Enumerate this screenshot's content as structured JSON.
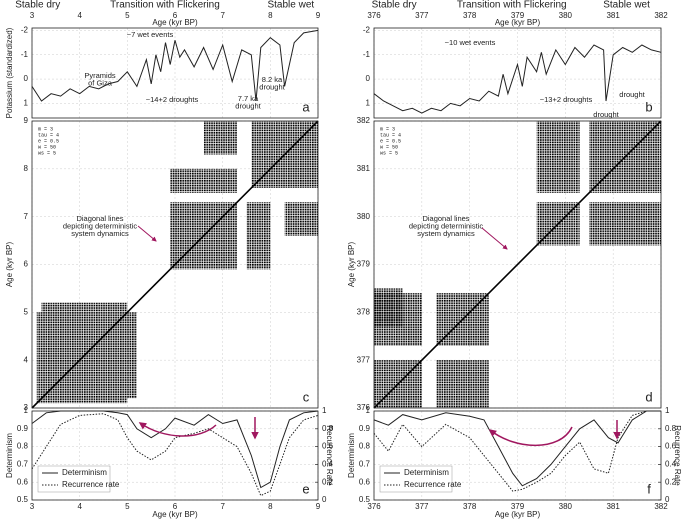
{
  "chart_data": [
    {
      "type": "line",
      "panel_label": "a",
      "header_labels": [
        {
          "text": "Stable dry",
          "color": "#d0312d"
        },
        {
          "text": "Transition with Flickering",
          "color": "#a0175f"
        },
        {
          "text": "Stable wet",
          "color": "#2f7fc1"
        }
      ],
      "x_label": "Age (kyr BP)",
      "y_label": "Potassium (standardized)",
      "xlim": [
        3,
        9
      ],
      "xticks": [
        3,
        4,
        5,
        6,
        7,
        8,
        9
      ],
      "ylim": [
        1.6,
        -2.1
      ],
      "yticks": [
        -2,
        -1,
        0,
        1
      ],
      "grid": true,
      "x": [
        3,
        3.2,
        3.4,
        3.6,
        3.8,
        4.0,
        4.2,
        4.4,
        4.6,
        4.8,
        5.0,
        5.2,
        5.4,
        5.5,
        5.6,
        5.7,
        5.8,
        5.9,
        6.0,
        6.1,
        6.2,
        6.4,
        6.6,
        6.8,
        7.0,
        7.2,
        7.4,
        7.6,
        7.7,
        7.8,
        8.0,
        8.2,
        8.3,
        8.5,
        8.7,
        9.0
      ],
      "series": [
        {
          "color": "#222222",
          "values": [
            0.3,
            0.9,
            0.6,
            0.7,
            0.4,
            0.6,
            0.3,
            0.4,
            0.2,
            0.1,
            -0.3,
            0.3,
            -0.8,
            0.2,
            -1.0,
            -0.3,
            -1.5,
            -0.6,
            -1.6,
            -0.9,
            -1.2,
            -0.5,
            -1.3,
            -0.4,
            -1.4,
            0.1,
            -1.2,
            -1.0,
            0.9,
            -1.3,
            -1.7,
            -1.4,
            0.3,
            -1.5,
            -1.9,
            -2.0
          ]
        }
      ],
      "annotations": [
        {
          "lines": [
            "~7 wet events"
          ],
          "color": "#2f7fc1"
        },
        {
          "lines": [
            "Pyramids",
            "of Giza"
          ],
          "color": "#1d4f5e"
        },
        {
          "lines": [
            "~14+2 droughts"
          ],
          "color": "#d0312d"
        },
        {
          "lines": [
            "7.7 ka",
            "drought"
          ],
          "color": "#d0312d"
        },
        {
          "lines": [
            "8.2 ka",
            "drought"
          ],
          "color": "#d0312d"
        }
      ]
    },
    {
      "type": "line",
      "panel_label": "b",
      "header_labels": [
        {
          "text": "Stable dry",
          "color": "#d0312d"
        },
        {
          "text": "Transition with Flickering",
          "color": "#a0175f"
        },
        {
          "text": "Stable wet",
          "color": "#2f7fc1"
        }
      ],
      "x_label": "Age (kyr BP)",
      "xlim": [
        376,
        382
      ],
      "xticks": [
        376,
        377,
        378,
        379,
        380,
        381,
        382
      ],
      "ylim": [
        1.6,
        -2.1
      ],
      "yticks": [
        -2,
        -1,
        0,
        1
      ],
      "grid": true,
      "x": [
        376,
        376.2,
        376.4,
        376.6,
        376.8,
        377,
        377.2,
        377.4,
        377.6,
        377.8,
        378,
        378.2,
        378.4,
        378.6,
        378.7,
        378.8,
        379,
        379.1,
        379.2,
        379.4,
        379.5,
        379.6,
        379.8,
        380,
        380.2,
        380.4,
        380.6,
        380.8,
        380.85,
        381,
        381.2,
        381.4,
        381.6,
        381.8,
        382
      ],
      "series": [
        {
          "color": "#222222",
          "values": [
            0.6,
            0.9,
            1.1,
            1.3,
            1.2,
            1.4,
            1.2,
            1.3,
            1.0,
            1.1,
            0.8,
            0.9,
            0.5,
            0.7,
            -0.2,
            0.6,
            -0.6,
            0.3,
            -0.9,
            -0.3,
            -1.1,
            -0.2,
            -1.2,
            -0.6,
            -1.3,
            -0.9,
            -1.4,
            -1.2,
            0.9,
            -1.0,
            -1.3,
            -1.1,
            -1.4,
            -1.2,
            -1.1
          ]
        }
      ],
      "annotations": [
        {
          "lines": [
            "~10 wet events"
          ],
          "color": "#2f7fc1"
        },
        {
          "lines": [
            "~13+2 droughts"
          ],
          "color": "#d0312d"
        },
        {
          "lines": [
            "drought"
          ],
          "color": "#d0312d"
        },
        {
          "lines": [
            "drought"
          ],
          "color": "#d0312d"
        }
      ]
    },
    {
      "type": "recurrence",
      "panel_label": "c",
      "y_label": "Age (kyr BP)",
      "xlim": [
        3,
        9
      ],
      "xticks": [
        3,
        4,
        5,
        6,
        7,
        8,
        9
      ],
      "ylim": [
        3,
        9
      ],
      "yticks": [
        3,
        4,
        5,
        6,
        7,
        8,
        9
      ],
      "grid": true,
      "params": [
        "m = 3",
        "tau = 4",
        "e = 0.5",
        "w = 50",
        "ws = 5"
      ],
      "rects": [
        [
          3.1,
          5.0,
          3.1,
          5.0
        ],
        [
          3.2,
          5.0,
          5.0,
          5.2
        ],
        [
          5.0,
          5.2,
          3.2,
          5.0
        ],
        [
          5.9,
          7.3,
          5.9,
          7.3
        ],
        [
          7.5,
          8.0,
          5.9,
          7.3
        ],
        [
          5.9,
          7.3,
          7.5,
          8.0
        ],
        [
          7.6,
          9.0,
          7.6,
          9.0
        ],
        [
          6.6,
          7.3,
          8.3,
          9.0
        ],
        [
          8.3,
          9.0,
          6.6,
          7.3
        ]
      ],
      "annotations": [
        {
          "lines": [
            "Diagonal lines",
            "depicting deterministic",
            "system dynamics"
          ],
          "color": "#a0175f"
        }
      ]
    },
    {
      "type": "recurrence",
      "panel_label": "d",
      "y_label": "Age (kyr BP)",
      "xlim": [
        376,
        382
      ],
      "xticks": [
        376,
        377,
        378,
        379,
        380,
        381,
        382
      ],
      "ylim": [
        376,
        382
      ],
      "yticks": [
        376,
        377,
        378,
        379,
        380,
        381,
        382
      ],
      "grid": true,
      "params": [
        "m = 3",
        "tau = 4",
        "e = 0.5",
        "w = 50",
        "ws = 5"
      ],
      "rects": [
        [
          376.0,
          377.0,
          376.0,
          377.0
        ],
        [
          377.3,
          378.4,
          377.3,
          378.4
        ],
        [
          377.3,
          378.4,
          376.0,
          377.0
        ],
        [
          376.0,
          377.0,
          377.3,
          378.4
        ],
        [
          376.0,
          376.6,
          377.7,
          378.5
        ],
        [
          379.4,
          380.3,
          379.4,
          380.3
        ],
        [
          380.5,
          382.0,
          380.5,
          382.0
        ],
        [
          379.4,
          380.3,
          380.5,
          382.0
        ],
        [
          380.5,
          382.0,
          379.4,
          380.3
        ]
      ],
      "annotations": [
        {
          "lines": [
            "Diagonal lines",
            "depicting deterministic",
            "system dynamics"
          ],
          "color": "#a0175f"
        }
      ]
    },
    {
      "type": "line",
      "panel_label": "e",
      "x_label": "Age (kyr BP)",
      "y_label": "Determinism",
      "y2_label": "Recurrence Rate",
      "xlim": [
        3,
        9
      ],
      "xticks": [
        3,
        4,
        5,
        6,
        7,
        8,
        9
      ],
      "ylim": [
        0.5,
        1
      ],
      "yticks": [
        0.5,
        0.6,
        0.7,
        0.8,
        0.9,
        1
      ],
      "y2lim": [
        0,
        1
      ],
      "y2ticks": [
        0,
        0.2,
        0.4,
        0.6,
        0.8,
        1
      ],
      "grid": true,
      "legend": "lower left",
      "x": [
        3,
        3.3,
        3.6,
        4,
        4.5,
        4.8,
        5,
        5.2,
        5.5,
        5.8,
        6,
        6.4,
        6.7,
        7,
        7.3,
        7.6,
        7.8,
        8,
        8.2,
        8.4,
        8.7,
        9
      ],
      "series": [
        {
          "name": "Determinism",
          "color": "#222222",
          "line_style": "solid",
          "values": [
            0.93,
            0.99,
            1,
            1,
            1,
            0.99,
            0.98,
            0.9,
            0.85,
            0.9,
            0.96,
            0.92,
            0.98,
            0.93,
            0.95,
            0.75,
            0.57,
            0.6,
            0.8,
            0.95,
            0.99,
            1
          ]
        },
        {
          "name": "Recurrence rate",
          "color": "#222222",
          "line_style": "dotted",
          "axis": "y2",
          "values": [
            0.35,
            0.6,
            0.85,
            0.95,
            0.97,
            0.9,
            0.7,
            0.55,
            0.45,
            0.55,
            0.7,
            0.75,
            0.8,
            0.7,
            0.6,
            0.3,
            0.05,
            0.1,
            0.4,
            0.7,
            0.9,
            0.95
          ]
        }
      ]
    },
    {
      "type": "line",
      "panel_label": "f",
      "x_label": "Age (kyr BP)",
      "y_label": "Determinism",
      "y2_label": "Recurrence Rate",
      "xlim": [
        376,
        382
      ],
      "xticks": [
        376,
        377,
        378,
        379,
        380,
        381,
        382
      ],
      "ylim": [
        0.5,
        1
      ],
      "yticks": [
        0.5,
        0.6,
        0.7,
        0.8,
        0.9,
        1
      ],
      "y2lim": [
        0,
        1
      ],
      "y2ticks": [
        0,
        0.2,
        0.4,
        0.6,
        0.8,
        1
      ],
      "grid": true,
      "legend": "lower left",
      "x": [
        376,
        376.3,
        376.6,
        377,
        377.5,
        378,
        378.3,
        378.6,
        378.9,
        379.1,
        379.4,
        379.7,
        380,
        380.3,
        380.6,
        380.9,
        381.1,
        381.4,
        381.7,
        382
      ],
      "series": [
        {
          "name": "Determinism",
          "color": "#222222",
          "line_style": "solid",
          "values": [
            0.95,
            0.92,
            0.98,
            0.95,
            0.99,
            0.97,
            0.95,
            0.8,
            0.65,
            0.58,
            0.62,
            0.7,
            0.8,
            0.9,
            0.95,
            0.85,
            0.82,
            0.95,
            1,
            1
          ]
        },
        {
          "name": "Recurrence rate",
          "color": "#222222",
          "line_style": "dotted",
          "axis": "y2",
          "values": [
            0.75,
            0.55,
            0.85,
            0.6,
            0.85,
            0.7,
            0.5,
            0.3,
            0.1,
            0.12,
            0.2,
            0.3,
            0.5,
            0.65,
            0.35,
            0.3,
            0.7,
            0.95,
            1,
            1
          ]
        }
      ]
    }
  ]
}
